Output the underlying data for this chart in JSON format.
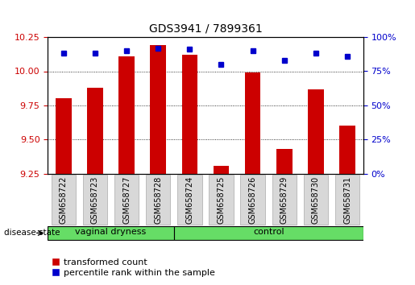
{
  "title": "GDS3941 / 7899361",
  "samples": [
    "GSM658722",
    "GSM658723",
    "GSM658727",
    "GSM658728",
    "GSM658724",
    "GSM658725",
    "GSM658726",
    "GSM658729",
    "GSM658730",
    "GSM658731"
  ],
  "transformed_count": [
    9.8,
    9.88,
    10.11,
    10.19,
    10.12,
    9.31,
    9.99,
    9.43,
    9.87,
    9.6
  ],
  "percentile_rank": [
    88,
    88,
    90,
    92,
    91,
    80,
    90,
    83,
    88,
    86
  ],
  "ylim_left": [
    9.25,
    10.25
  ],
  "ylim_right": [
    0,
    100
  ],
  "yticks_left": [
    9.25,
    9.5,
    9.75,
    10.0,
    10.25
  ],
  "yticks_right": [
    0,
    25,
    50,
    75,
    100
  ],
  "groups": [
    {
      "label": "vaginal dryness",
      "start": 0,
      "end": 4
    },
    {
      "label": "control",
      "start": 4,
      "end": 10
    }
  ],
  "bar_color": "#CC0000",
  "marker_color": "#0000CC",
  "label_bar": "transformed count",
  "label_marker": "percentile rank within the sample",
  "tick_label_color_left": "#CC0000",
  "tick_label_color_right": "#0000CC",
  "disease_state_label": "disease state",
  "group_fill": "#66DD66",
  "group_edge": "#000000",
  "xtick_bg": "#d8d8d8",
  "xtick_edge": "#aaaaaa",
  "plot_bg": "#ffffff"
}
